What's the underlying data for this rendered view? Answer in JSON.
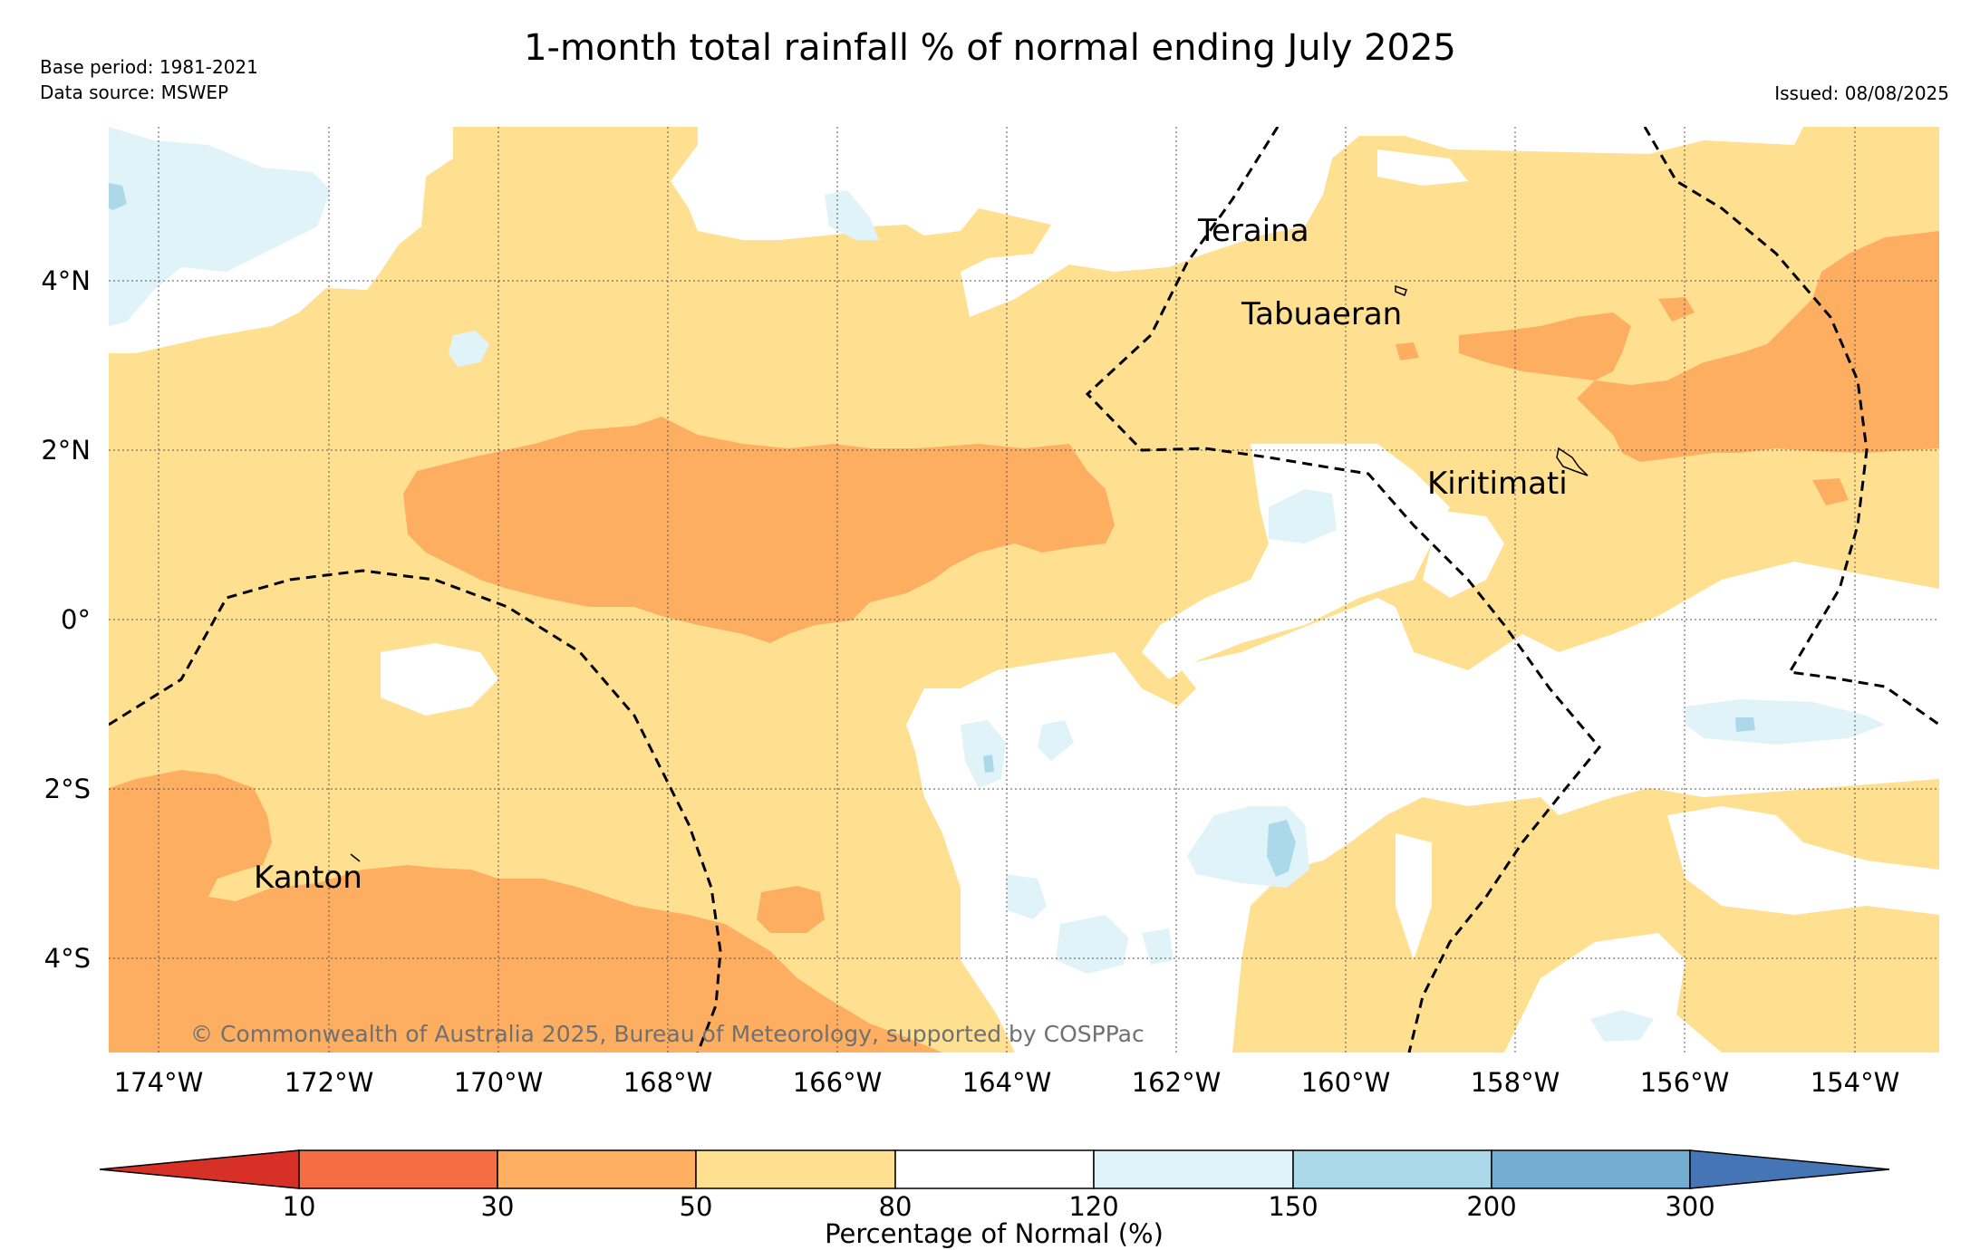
{
  "header": {
    "title": "1-month total rainfall % of normal ending July 2025",
    "base_period": "Base period: 1981-2021",
    "data_source": "Data source: MSWEP",
    "issued": "Issued: 08/08/2025"
  },
  "map": {
    "lon_ticks": [
      "174°W",
      "172°W",
      "170°W",
      "168°W",
      "166°W",
      "164°W",
      "162°W",
      "160°W",
      "158°W",
      "156°W",
      "154°W"
    ],
    "lat_ticks": [
      "4°N",
      "2°N",
      "0°",
      "2°S",
      "4°S"
    ],
    "places": [
      "Teraina",
      "Tabuaeran",
      "Kiritimati",
      "Kanton"
    ],
    "credit": "© Commonwealth of Australia 2025, Bureau of Meteorology, supported by COSPPac",
    "colors": {
      "lt10": "#d73027",
      "10-30": "#f46d43",
      "30-50": "#fdae61",
      "50-80": "#fee090",
      "80-120": "#ffffff",
      "120-150": "#e0f3f8",
      "150-200": "#abd9e9",
      "200-300": "#74add1",
      "gt300": "#4575b4"
    }
  },
  "colorbar": {
    "title": "Percentage of Normal (%)",
    "ticks": [
      "10",
      "30",
      "50",
      "80",
      "120",
      "150",
      "200",
      "300"
    ]
  }
}
